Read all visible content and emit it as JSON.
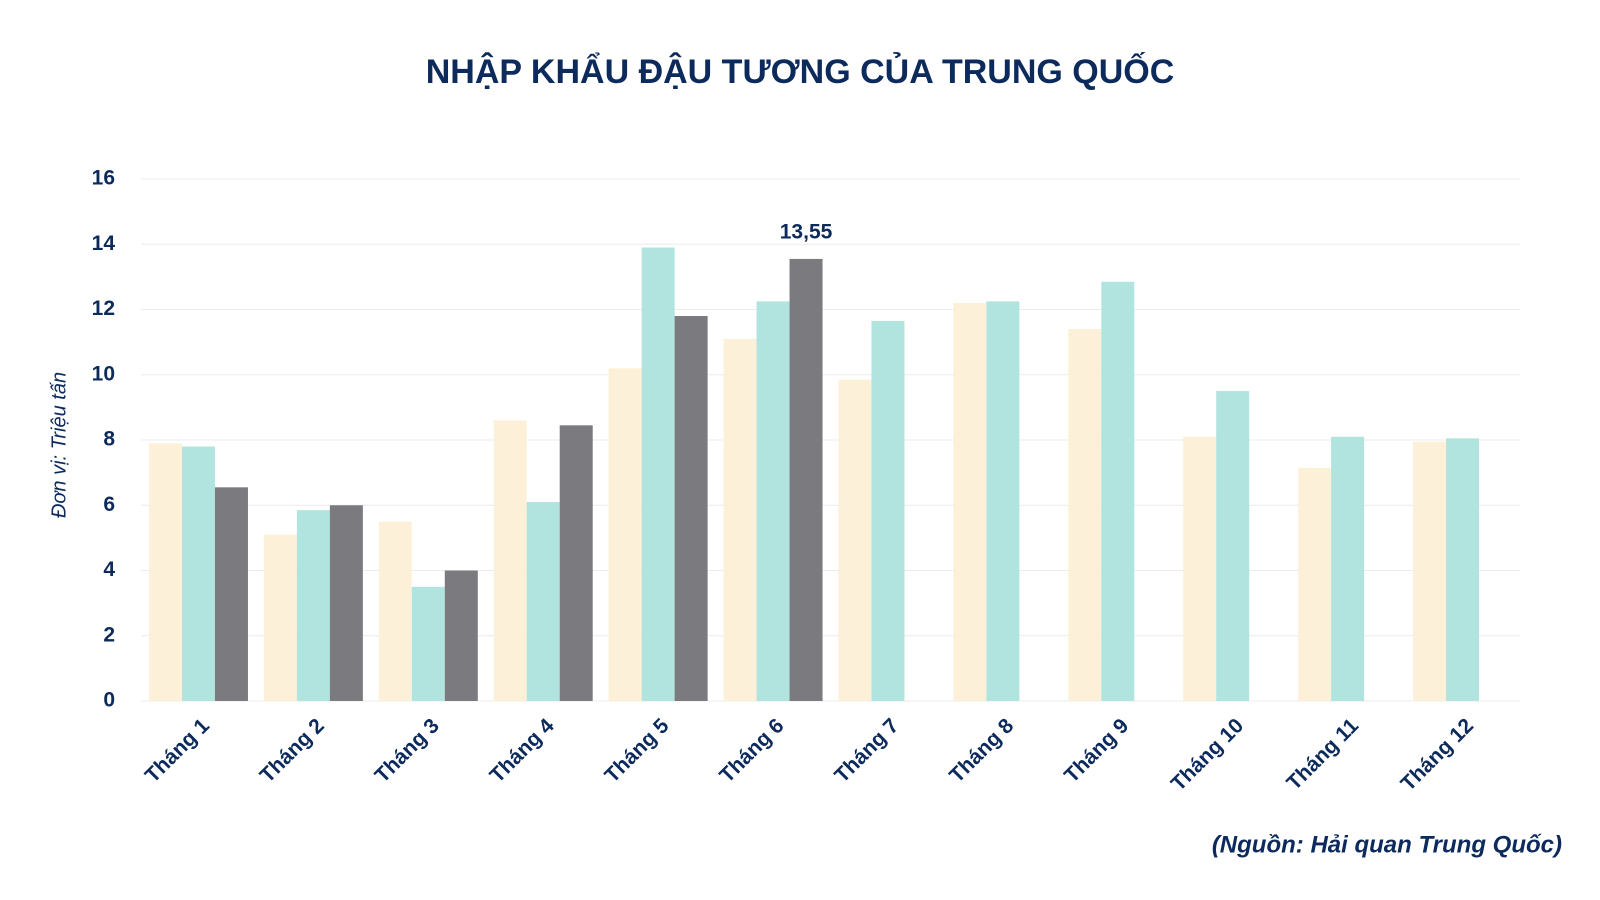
{
  "chart_data": {
    "type": "bar",
    "title": "NHẬP KHẨU ĐẬU TƯƠNG CỦA TRUNG QUỐC",
    "y_label": "Đơn vị: Triệu tấn",
    "source": "(Nguồn: Hải quan Trung Quốc)",
    "categories": [
      "Tháng 1",
      "Tháng 2",
      "Tháng 3",
      "Tháng 4",
      "Tháng 5",
      "Tháng 6",
      "Tháng 7",
      "Tháng 8",
      "Tháng 9",
      "Tháng 10",
      "Tháng 11",
      "Tháng 12"
    ],
    "series": [
      {
        "color": "#fdf0d8",
        "values": [
          7.9,
          5.1,
          5.5,
          8.6,
          10.2,
          11.1,
          9.85,
          12.2,
          11.4,
          8.1,
          7.15,
          7.95
        ]
      },
      {
        "color": "#b1e4de",
        "values": [
          7.8,
          5.85,
          3.5,
          6.1,
          13.9,
          12.25,
          11.65,
          12.25,
          12.85,
          9.5,
          8.1,
          8.05
        ]
      },
      {
        "color": "#7b7a7f",
        "values": [
          6.55,
          6.0,
          4.0,
          8.45,
          11.8,
          13.55,
          null,
          null,
          null,
          null,
          null,
          null
        ],
        "value_labels": [
          null,
          null,
          null,
          null,
          null,
          "13,55",
          null,
          null,
          null,
          null,
          null,
          null
        ]
      }
    ],
    "ylim": [
      0,
      16
    ],
    "yticks": [
      0,
      2,
      4,
      6,
      8,
      10,
      12,
      14,
      16
    ],
    "grid": true
  }
}
